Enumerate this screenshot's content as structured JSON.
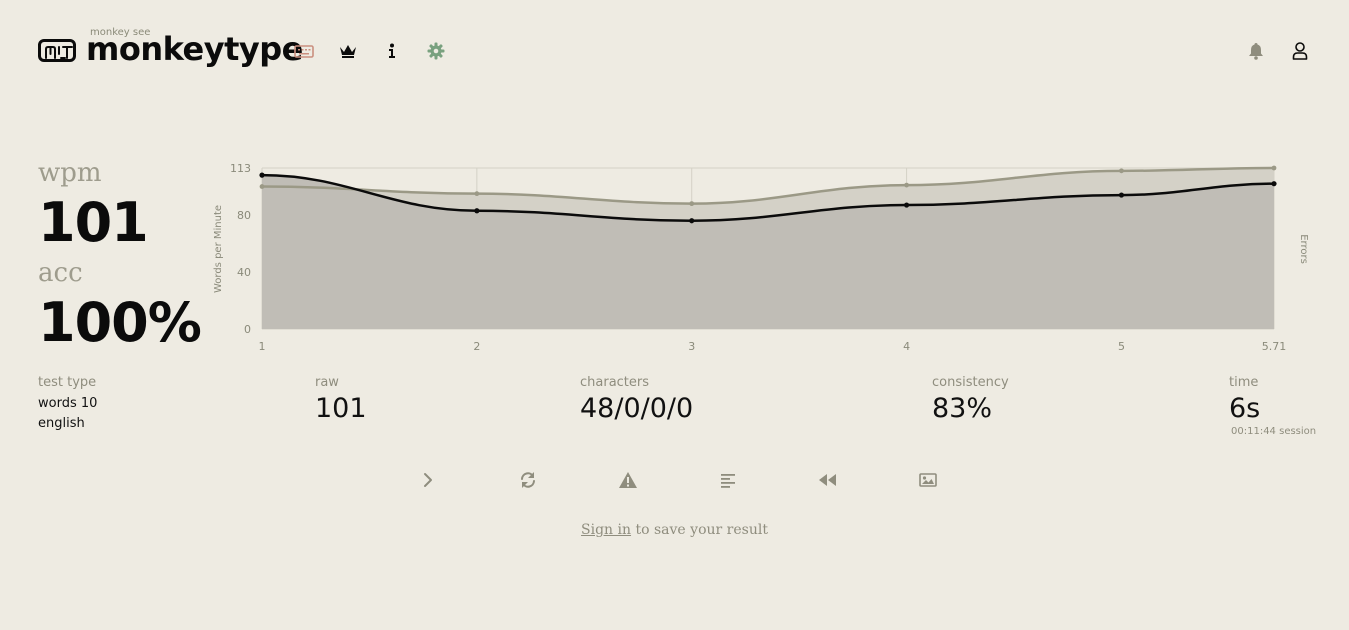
{
  "header": {
    "subtitle": "monkey see",
    "title": "monkeytype",
    "icons": [
      "keyboard-icon",
      "crown-icon",
      "info-icon",
      "gear-icon",
      "bell-icon",
      "user-icon"
    ]
  },
  "results": {
    "wpm_label": "wpm",
    "wpm_value": "101",
    "acc_label": "acc",
    "acc_value": "100%",
    "test_type_label": "test type",
    "test_type_line1": "words 10",
    "test_type_line2": "english",
    "raw_label": "raw",
    "raw_value": "101",
    "characters_label": "characters",
    "characters_value": "48/0/0/0",
    "consistency_label": "consistency",
    "consistency_value": "83%",
    "time_label": "time",
    "time_value": "6s",
    "session_value": "00:11:44",
    "session_label": "session"
  },
  "signin": {
    "link": "Sign in",
    "rest": " to save your result"
  },
  "colors": {
    "background": "#eeebe2",
    "main": "#0b0b0b",
    "sub": "#9e9c8d",
    "raw_line": "#9b9986",
    "keyboard_icon": "#ca8f7f",
    "gear_icon": "#79a17f"
  },
  "chart_data": {
    "type": "line",
    "ylabel": "Words per Minute",
    "y2label": "Errors",
    "x": [
      1,
      2,
      3,
      4,
      5,
      5.71
    ],
    "x_tick_labels": [
      "1",
      "2",
      "3",
      "4",
      "5",
      "5.71"
    ],
    "y_ticks": [
      "0",
      "40",
      "80",
      "113"
    ],
    "ylim": [
      0,
      113
    ],
    "series": [
      {
        "values": [
          100,
          95,
          88,
          101,
          111,
          113
        ]
      },
      {
        "values": [
          108,
          83,
          76,
          87,
          94,
          102
        ]
      }
    ],
    "grid": true
  }
}
